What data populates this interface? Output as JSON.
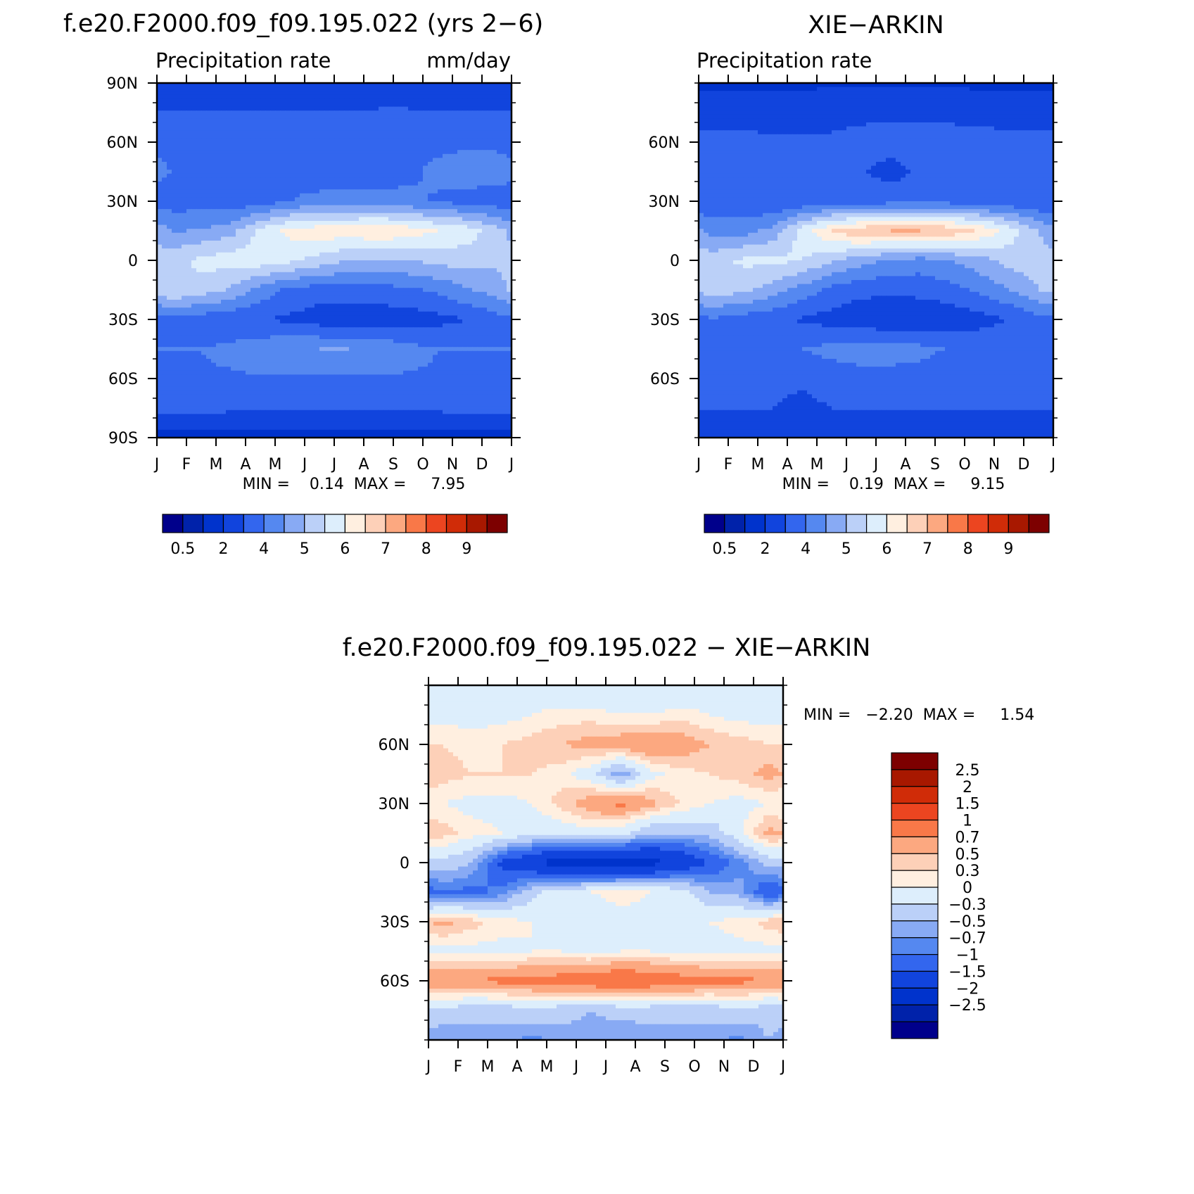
{
  "page": {
    "model_case": "f.e20.F2000.f09_f09.195.022"
  },
  "chart_data": [
    {
      "type": "heatmap",
      "panel": "model",
      "title": "f.e20.F2000.f09_f09.195.022 (yrs 2−6)",
      "variable": "Precipitation rate",
      "units": "mm/day",
      "xlabel": "",
      "ylabel": "",
      "x_ticklabels": [
        "J",
        "F",
        "M",
        "A",
        "M",
        "J",
        "J",
        "A",
        "S",
        "O",
        "N",
        "D",
        "J"
      ],
      "y_ticks": [
        90,
        60,
        30,
        0,
        -30,
        -60,
        -90
      ],
      "y_ticklabels": [
        "90N",
        "60N",
        "30N",
        "0",
        "30S",
        "60S",
        "90S"
      ],
      "ylim": [
        -90,
        90
      ],
      "xlim": [
        0,
        12
      ],
      "stats_text": "MIN =    0.14  MAX =     7.95",
      "min": 0.14,
      "max": 7.95,
      "colorbar": {
        "levels": [
          0.2,
          0.5,
          1,
          2,
          3,
          4,
          5,
          6,
          7,
          8,
          9,
          10,
          12,
          14,
          17
        ],
        "shown_labels": [
          "0.5",
          "2",
          "4",
          "5",
          "6",
          "7",
          "8",
          "9"
        ],
        "colors": [
          "#00008b",
          "#0022aa",
          "#0033cc",
          "#1144dd",
          "#3366ee",
          "#5588f0",
          "#88aaf4",
          "#bbd0f8",
          "#ddeefc",
          "#ffefe0",
          "#fdd0b8",
          "#fca880",
          "#f97848",
          "#ec4520",
          "#d02c08",
          "#a81800",
          "#7d0000"
        ]
      },
      "latitudes": [
        -90,
        -75,
        -60,
        -45,
        -30,
        -15,
        0,
        15,
        30,
        45,
        60,
        75,
        90
      ],
      "months": [
        "J",
        "F",
        "M",
        "A",
        "M",
        "J",
        "J",
        "A",
        "S",
        "O",
        "N",
        "D"
      ],
      "z_rows_south_to_north": [
        [
          0.6,
          0.6,
          0.6,
          0.6,
          0.6,
          0.6,
          0.6,
          0.6,
          0.6,
          0.6,
          0.6,
          0.6
        ],
        [
          2.3,
          2.3,
          2.2,
          2.2,
          2.1,
          2.1,
          2.1,
          2.1,
          2.2,
          2.2,
          2.3,
          2.3
        ],
        [
          2.9,
          2.9,
          2.9,
          2.9,
          2.9,
          2.9,
          2.9,
          2.9,
          2.9,
          2.9,
          2.9,
          2.9
        ],
        [
          3.0,
          3.0,
          3.2,
          3.6,
          3.9,
          4.0,
          4.0,
          3.8,
          3.3,
          3.0,
          3.0,
          3.0
        ],
        [
          2.8,
          2.4,
          2.3,
          2.0,
          1.8,
          1.5,
          1.4,
          1.4,
          1.5,
          1.7,
          2.0,
          2.6
        ],
        [
          6.0,
          5.6,
          4.8,
          3.6,
          2.8,
          2.5,
          2.5,
          2.6,
          2.8,
          3.2,
          3.9,
          4.5
        ],
        [
          5.6,
          6.3,
          6.5,
          6.6,
          6.2,
          5.6,
          5.0,
          4.8,
          5.0,
          5.3,
          5.5,
          5.2
        ],
        [
          3.9,
          4.1,
          4.6,
          6.3,
          7.3,
          7.6,
          7.6,
          7.9,
          7.6,
          7.0,
          6.5,
          5.4
        ],
        [
          2.5,
          2.5,
          2.3,
          2.4,
          3.0,
          3.4,
          3.5,
          3.4,
          3.2,
          2.9,
          2.6,
          2.4
        ],
        [
          3.0,
          2.8,
          2.8,
          2.7,
          2.5,
          2.2,
          2.1,
          2.5,
          2.8,
          3.2,
          3.5,
          3.6
        ],
        [
          2.6,
          2.5,
          2.5,
          2.4,
          2.4,
          2.4,
          2.5,
          2.6,
          2.8,
          2.8,
          2.8,
          2.7
        ],
        [
          2.0,
          2.0,
          2.0,
          2.0,
          2.0,
          2.0,
          2.0,
          2.1,
          2.1,
          2.0,
          2.0,
          2.0
        ],
        [
          1.3,
          1.3,
          1.3,
          1.2,
          1.3,
          1.4,
          1.4,
          1.4,
          1.4,
          1.3,
          1.3,
          1.3
        ]
      ]
    },
    {
      "type": "heatmap",
      "panel": "observations",
      "title": "XIE−ARKIN",
      "variable": "Precipitation rate",
      "units": "",
      "xlabel": "",
      "ylabel": "",
      "x_ticklabels": [
        "J",
        "F",
        "M",
        "A",
        "M",
        "J",
        "J",
        "A",
        "S",
        "O",
        "N",
        "D",
        "J"
      ],
      "y_ticks": [
        60,
        30,
        0,
        -30,
        -60
      ],
      "y_ticklabels": [
        "60N",
        "30N",
        "0",
        "30S",
        "60S"
      ],
      "ylim": [
        -90,
        90
      ],
      "xlim": [
        0,
        12
      ],
      "stats_text": "MIN =    0.19  MAX =     9.15",
      "min": 0.19,
      "max": 9.15,
      "colorbar": {
        "levels": [
          0.2,
          0.5,
          1,
          2,
          3,
          4,
          5,
          6,
          7,
          8,
          9,
          10,
          12,
          14,
          17
        ],
        "shown_labels": [
          "0.5",
          "2",
          "4",
          "5",
          "6",
          "7",
          "8",
          "9"
        ],
        "colors": [
          "#00008b",
          "#0022aa",
          "#0033cc",
          "#1144dd",
          "#3366ee",
          "#5588f0",
          "#88aaf4",
          "#bbd0f8",
          "#ddeefc",
          "#ffefe0",
          "#fdd0b8",
          "#fca880",
          "#f97848",
          "#ec4520",
          "#d02c08",
          "#a81800",
          "#7d0000"
        ]
      },
      "latitudes": [
        -90,
        -75,
        -60,
        -45,
        -30,
        -15,
        0,
        15,
        30,
        45,
        60,
        75,
        90
      ],
      "months": [
        "J",
        "F",
        "M",
        "A",
        "M",
        "J",
        "J",
        "A",
        "S",
        "O",
        "N",
        "D"
      ],
      "z_rows_south_to_north": [
        [
          1.3,
          1.2,
          1.1,
          1.2,
          1.3,
          1.2,
          1.2,
          1.1,
          1.2,
          1.3,
          1.3,
          1.3
        ],
        [
          2.0,
          2.0,
          2.0,
          1.7,
          2.0,
          2.0,
          2.0,
          2.0,
          2.0,
          2.0,
          2.0,
          2.0
        ],
        [
          2.4,
          2.4,
          2.3,
          2.2,
          2.5,
          2.6,
          2.6,
          2.6,
          2.5,
          2.4,
          2.4,
          2.4
        ],
        [
          2.8,
          2.8,
          2.8,
          3.0,
          3.3,
          3.5,
          3.5,
          3.3,
          2.9,
          2.8,
          2.8,
          2.8
        ],
        [
          2.9,
          2.5,
          2.2,
          1.9,
          1.6,
          1.3,
          1.2,
          1.2,
          1.3,
          1.6,
          2.0,
          2.6
        ],
        [
          5.5,
          5.3,
          4.5,
          3.6,
          2.7,
          2.3,
          2.2,
          2.3,
          2.6,
          3.2,
          4.0,
          5.0
        ],
        [
          5.6,
          6.2,
          6.3,
          6.0,
          5.2,
          4.4,
          3.8,
          3.6,
          4.0,
          4.6,
          5.4,
          5.4
        ],
        [
          3.6,
          3.6,
          4.3,
          6.5,
          8.1,
          8.8,
          9.0,
          9.0,
          8.8,
          7.9,
          6.6,
          5.0
        ],
        [
          2.1,
          2.2,
          2.0,
          2.1,
          2.3,
          2.5,
          2.6,
          2.6,
          2.6,
          2.4,
          2.2,
          2.0
        ],
        [
          2.2,
          2.2,
          2.2,
          2.2,
          2.1,
          2.1,
          1.6,
          2.2,
          2.2,
          2.3,
          2.4,
          2.3
        ],
        [
          2.3,
          2.3,
          2.2,
          2.1,
          2.2,
          2.4,
          2.5,
          2.5,
          2.5,
          2.4,
          2.3,
          2.3
        ],
        [
          1.5,
          1.5,
          1.5,
          1.6,
          1.6,
          1.7,
          1.8,
          1.7,
          1.7,
          1.6,
          1.6,
          1.5
        ],
        [
          0.8,
          0.8,
          0.8,
          0.8,
          0.9,
          0.9,
          0.9,
          0.9,
          0.9,
          0.8,
          0.8,
          0.8
        ]
      ]
    },
    {
      "type": "heatmap",
      "panel": "difference",
      "title": "f.e20.F2000.f09_f09.195.022 − XIE−ARKIN",
      "xlabel": "",
      "ylabel": "",
      "x_ticklabels": [
        "J",
        "F",
        "M",
        "A",
        "M",
        "J",
        "J",
        "A",
        "S",
        "O",
        "N",
        "D",
        "J"
      ],
      "y_ticks": [
        60,
        30,
        0,
        -30,
        -60
      ],
      "y_ticklabels": [
        "60N",
        "30N",
        "0",
        "30S",
        "60S"
      ],
      "ylim": [
        -90,
        90
      ],
      "xlim": [
        0,
        12
      ],
      "stats_text": "MIN =   −2.20  MAX =     1.54",
      "min": -2.2,
      "max": 1.54,
      "colorbar": {
        "levels": [
          -2.5,
          -2,
          -1.5,
          -1,
          -0.7,
          -0.5,
          -0.3,
          0,
          0.3,
          0.5,
          0.7,
          1,
          1.5,
          2,
          2.5
        ],
        "labels": [
          "2.5",
          "2",
          "1.5",
          "1",
          "0.7",
          "0.5",
          "0.3",
          "0",
          "−0.3",
          "−0.5",
          "−0.7",
          "−1",
          "−1.5",
          "−2",
          "−2.5"
        ],
        "colors": [
          "#00008b",
          "#0022aa",
          "#0033cc",
          "#1144dd",
          "#3366ee",
          "#5588f0",
          "#88aaf4",
          "#bbd0f8",
          "#ddeefc",
          "#ffefe0",
          "#fdd0b8",
          "#fca880",
          "#f97848",
          "#ec4520",
          "#d02c08",
          "#a81800",
          "#7d0000"
        ]
      },
      "latitudes": [
        -90,
        -75,
        -60,
        -45,
        -30,
        -15,
        0,
        15,
        30,
        45,
        60,
        75,
        90
      ],
      "months": [
        "J",
        "F",
        "M",
        "A",
        "M",
        "J",
        "J",
        "A",
        "S",
        "O",
        "N",
        "D"
      ],
      "z_rows_south_to_north": [
        [
          -0.5,
          -0.4,
          -0.4,
          -0.6,
          -0.4,
          -0.4,
          -0.5,
          -0.4,
          -0.4,
          -0.4,
          -0.6,
          -0.3
        ],
        [
          -0.1,
          -0.2,
          -0.2,
          -0.1,
          -0.2,
          -0.3,
          -0.2,
          -0.2,
          -0.2,
          -0.2,
          -0.1,
          -0.2
        ],
        [
          1.0,
          1.0,
          1.1,
          1.1,
          1.2,
          1.3,
          1.4,
          1.3,
          1.2,
          1.1,
          1.1,
          1.0
        ],
        [
          0.2,
          0.2,
          0.2,
          0.3,
          0.3,
          0.2,
          0.3,
          0.3,
          0.2,
          0.2,
          0.2,
          0.2
        ],
        [
          0.8,
          0.6,
          0.4,
          0.3,
          0.2,
          0.1,
          0.2,
          0.2,
          0.2,
          0.3,
          0.4,
          0.6
        ],
        [
          -0.7,
          -0.8,
          -0.6,
          -0.1,
          0.2,
          0.3,
          0.4,
          0.3,
          0.2,
          -0.3,
          -0.4,
          -1.0
        ],
        [
          -0.1,
          -0.3,
          -1.1,
          -1.4,
          -1.8,
          -1.9,
          -1.8,
          -1.7,
          -1.4,
          -1.0,
          -0.6,
          -0.2
        ],
        [
          0.6,
          0.4,
          0.3,
          0.1,
          0.1,
          0.2,
          0.1,
          -0.3,
          -0.3,
          -0.2,
          0.2,
          0.8
        ],
        [
          0.3,
          0.2,
          0.2,
          0.3,
          0.6,
          0.9,
          1.1,
          0.8,
          0.5,
          0.3,
          0.2,
          0.3
        ],
        [
          0.6,
          0.5,
          0.5,
          0.5,
          0.4,
          0.1,
          -0.5,
          0.2,
          0.4,
          0.5,
          0.6,
          0.8
        ],
        [
          0.5,
          0.4,
          0.5,
          0.6,
          0.7,
          0.8,
          0.9,
          1.0,
          0.9,
          0.7,
          0.6,
          0.5
        ],
        [
          0.2,
          0.2,
          0.2,
          0.3,
          0.4,
          0.4,
          0.3,
          0.3,
          0.4,
          0.3,
          0.2,
          0.2
        ],
        [
          0.1,
          0.1,
          0.1,
          0.1,
          0.0,
          0.0,
          0.0,
          0.0,
          0.0,
          0.1,
          0.1,
          0.1
        ]
      ]
    }
  ]
}
